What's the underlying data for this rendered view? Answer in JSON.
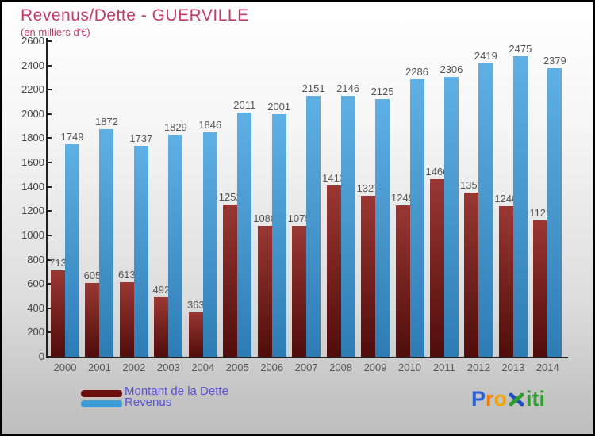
{
  "title": "Revenus/Dette - GUERVILLE",
  "subtitle": "(en milliers d'€)",
  "title_color": "#c23b6b",
  "chart_data": {
    "type": "bar",
    "title": "Revenus/Dette - GUERVILLE",
    "subtitle": "(en milliers d'€)",
    "xlabel": "",
    "ylabel": "en milliers d'€",
    "categories": [
      "2000",
      "2001",
      "2002",
      "2003",
      "2004",
      "2005",
      "2006",
      "2007",
      "2008",
      "2009",
      "2010",
      "2011",
      "2012",
      "2013",
      "2014"
    ],
    "series": [
      {
        "name": "Montant de la Dette",
        "color_top": "#9a3733",
        "color_bottom": "#500d0b",
        "values": [
          713,
          605,
          613,
          492,
          363,
          1252,
          1080,
          1075,
          1413,
          1327,
          1249,
          1466,
          1352,
          1240,
          1121
        ]
      },
      {
        "name": "Revenus",
        "color_top": "#5fb0e4",
        "color_bottom": "#2e7cb4",
        "values": [
          1749,
          1872,
          1737,
          1829,
          1846,
          2011,
          2001,
          2151,
          2146,
          2125,
          2286,
          2306,
          2419,
          2475,
          2379
        ]
      }
    ],
    "ylim": [
      0,
      2600
    ],
    "ytick_step": 200,
    "grid": false,
    "legend_position": "bottom-left",
    "value_labels": true
  },
  "legend": {
    "items": [
      {
        "label": "Montant de la Dette",
        "swatch_color": "#6e0f0f"
      },
      {
        "label": "Revenus",
        "swatch_color": "#3d9bd5"
      }
    ],
    "text_color": "#5953d4"
  },
  "logo": {
    "text": "Proxiti",
    "letters": [
      {
        "ch": "P",
        "color": "#2a5fd0"
      },
      {
        "ch": "r",
        "color": "#f07d00"
      },
      {
        "ch": "o",
        "color": "#f5a300"
      },
      {
        "ch": "x-icon",
        "color": "#1d4fc0",
        "color2": "#2f9e2f"
      },
      {
        "ch": "i",
        "color": "#2f9e2f"
      },
      {
        "ch": "t",
        "color": "#2f9e2f"
      },
      {
        "ch": "i",
        "color": "#2f9e2f"
      }
    ]
  }
}
